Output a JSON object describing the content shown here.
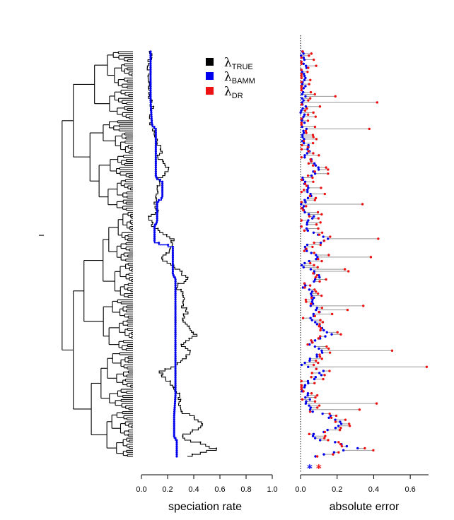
{
  "chart_data": [
    {
      "type": "tree",
      "title": "",
      "tips": 200
    },
    {
      "type": "line",
      "title": "",
      "xlabel": "speciation rate",
      "ylabel": "",
      "xlim": [
        0.0,
        1.0
      ],
      "xticks": [
        "0.0",
        "0.2",
        "0.4",
        "0.6",
        "0.8",
        "1.0"
      ],
      "legend": {
        "placement": "top-right",
        "entries": [
          {
            "symbol": "λ",
            "sub": "TRUE",
            "color": "#000000"
          },
          {
            "symbol": "λ",
            "sub": "BAMM",
            "color": "#0000ee"
          },
          {
            "symbol": "λ",
            "sub": "DR",
            "color": "#ee1111"
          }
        ]
      },
      "series": [
        {
          "key": "true",
          "color": "#000000",
          "description_points": [
            [
              0.07,
              0.0
            ],
            [
              0.06,
              0.03
            ],
            [
              0.05,
              0.07
            ],
            [
              0.06,
              0.1
            ],
            [
              0.08,
              0.14
            ],
            [
              0.07,
              0.17
            ],
            [
              0.1,
              0.2
            ],
            [
              0.12,
              0.22
            ],
            [
              0.15,
              0.24
            ],
            [
              0.13,
              0.26
            ],
            [
              0.22,
              0.29
            ],
            [
              0.14,
              0.31
            ],
            [
              0.12,
              0.34
            ],
            [
              0.1,
              0.37
            ],
            [
              0.12,
              0.39
            ],
            [
              0.06,
              0.41
            ],
            [
              0.09,
              0.43
            ],
            [
              0.13,
              0.44
            ],
            [
              0.24,
              0.46
            ],
            [
              0.22,
              0.49
            ],
            [
              0.15,
              0.51
            ],
            [
              0.3,
              0.54
            ],
            [
              0.35,
              0.56
            ],
            [
              0.26,
              0.58
            ],
            [
              0.33,
              0.6
            ],
            [
              0.3,
              0.62
            ],
            [
              0.35,
              0.64
            ],
            [
              0.3,
              0.66
            ],
            [
              0.38,
              0.68
            ],
            [
              0.42,
              0.7
            ],
            [
              0.3,
              0.72
            ],
            [
              0.38,
              0.74
            ],
            [
              0.35,
              0.75
            ],
            [
              0.28,
              0.77
            ],
            [
              0.14,
              0.79
            ],
            [
              0.2,
              0.81
            ],
            [
              0.25,
              0.83
            ],
            [
              0.3,
              0.85
            ],
            [
              0.28,
              0.87
            ],
            [
              0.32,
              0.89
            ],
            [
              0.4,
              0.9
            ],
            [
              0.48,
              0.92
            ],
            [
              0.36,
              0.94
            ],
            [
              0.3,
              0.95
            ],
            [
              0.38,
              0.96
            ],
            [
              0.5,
              0.97
            ],
            [
              0.56,
              0.98
            ],
            [
              0.35,
              1.0
            ]
          ]
        },
        {
          "key": "bamm",
          "color": "#0000ee",
          "description_points": [
            [
              0.07,
              0.0
            ],
            [
              0.07,
              0.12
            ],
            [
              0.08,
              0.18
            ],
            [
              0.11,
              0.19
            ],
            [
              0.11,
              0.31
            ],
            [
              0.16,
              0.32
            ],
            [
              0.16,
              0.36
            ],
            [
              0.12,
              0.37
            ],
            [
              0.12,
              0.42
            ],
            [
              0.1,
              0.43
            ],
            [
              0.1,
              0.47
            ],
            [
              0.24,
              0.48
            ],
            [
              0.24,
              0.55
            ],
            [
              0.26,
              0.56
            ],
            [
              0.26,
              0.85
            ],
            [
              0.25,
              0.9
            ],
            [
              0.25,
              0.95
            ],
            [
              0.27,
              0.96
            ],
            [
              0.27,
              1.0
            ]
          ]
        }
      ]
    },
    {
      "type": "dumbbell",
      "title": "",
      "xlabel": "absolute error",
      "ylabel": "",
      "xlim": [
        0.0,
        0.7
      ],
      "xticks": [
        "0.0",
        "0.2",
        "0.4",
        "0.6"
      ],
      "reference_line_x": 0.0,
      "series": [
        {
          "key": "bamm",
          "color": "#0000ee"
        },
        {
          "key": "dr",
          "color": "#ee1111"
        }
      ],
      "summary_markers": [
        {
          "key": "bamm",
          "value": 0.05,
          "color": "#0000ee",
          "symbol": "*"
        },
        {
          "key": "dr",
          "value": 0.1,
          "color": "#ee1111",
          "symbol": "*"
        }
      ]
    }
  ]
}
